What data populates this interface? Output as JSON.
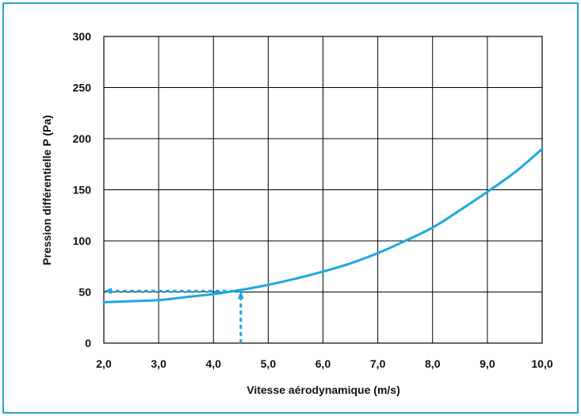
{
  "chart_data": {
    "type": "line",
    "title": "",
    "xlabel": "Vitesse aérodynamique (m/s)",
    "ylabel": "Pression différentielle P (Pa)",
    "xlim": [
      2.0,
      10.0
    ],
    "ylim": [
      0,
      300
    ],
    "x_ticks": [
      2.0,
      3.0,
      4.0,
      5.0,
      6.0,
      7.0,
      8.0,
      9.0,
      10.0
    ],
    "x_tick_labels": [
      "2,0",
      "3,0",
      "4,0",
      "5,0",
      "6,0",
      "7,0",
      "8,0",
      "9,0",
      "10,0"
    ],
    "y_ticks": [
      0,
      50,
      100,
      150,
      200,
      250,
      300
    ],
    "y_tick_labels": [
      "0",
      "50",
      "100",
      "150",
      "200",
      "250",
      "300"
    ],
    "grid": true,
    "series": [
      {
        "color": "#1ea7e1",
        "x": [
          2.0,
          2.5,
          3.0,
          3.5,
          4.0,
          4.5,
          5.0,
          5.5,
          6.0,
          6.5,
          7.0,
          7.5,
          8.0,
          8.5,
          9.0,
          9.5,
          10.0
        ],
        "y": [
          40,
          41,
          42,
          45,
          48,
          52,
          57,
          63,
          70,
          78,
          88,
          100,
          113,
          130,
          148,
          167,
          190
        ]
      }
    ],
    "annotations": [
      {
        "type": "dashed-arrow",
        "description": "vertical from x-axis up to curve",
        "x": 4.5,
        "y_from": 0,
        "y_to": 51,
        "color": "#1ea7e1"
      },
      {
        "type": "dashed-arrow",
        "description": "horizontal from curve to y-axis",
        "y": 51,
        "x_from": 4.5,
        "x_to": 2.0,
        "color": "#1ea7e1"
      }
    ],
    "colors": {
      "frame": "#2a9fd6",
      "curve": "#1ea7e1",
      "grid": "#000000"
    }
  }
}
